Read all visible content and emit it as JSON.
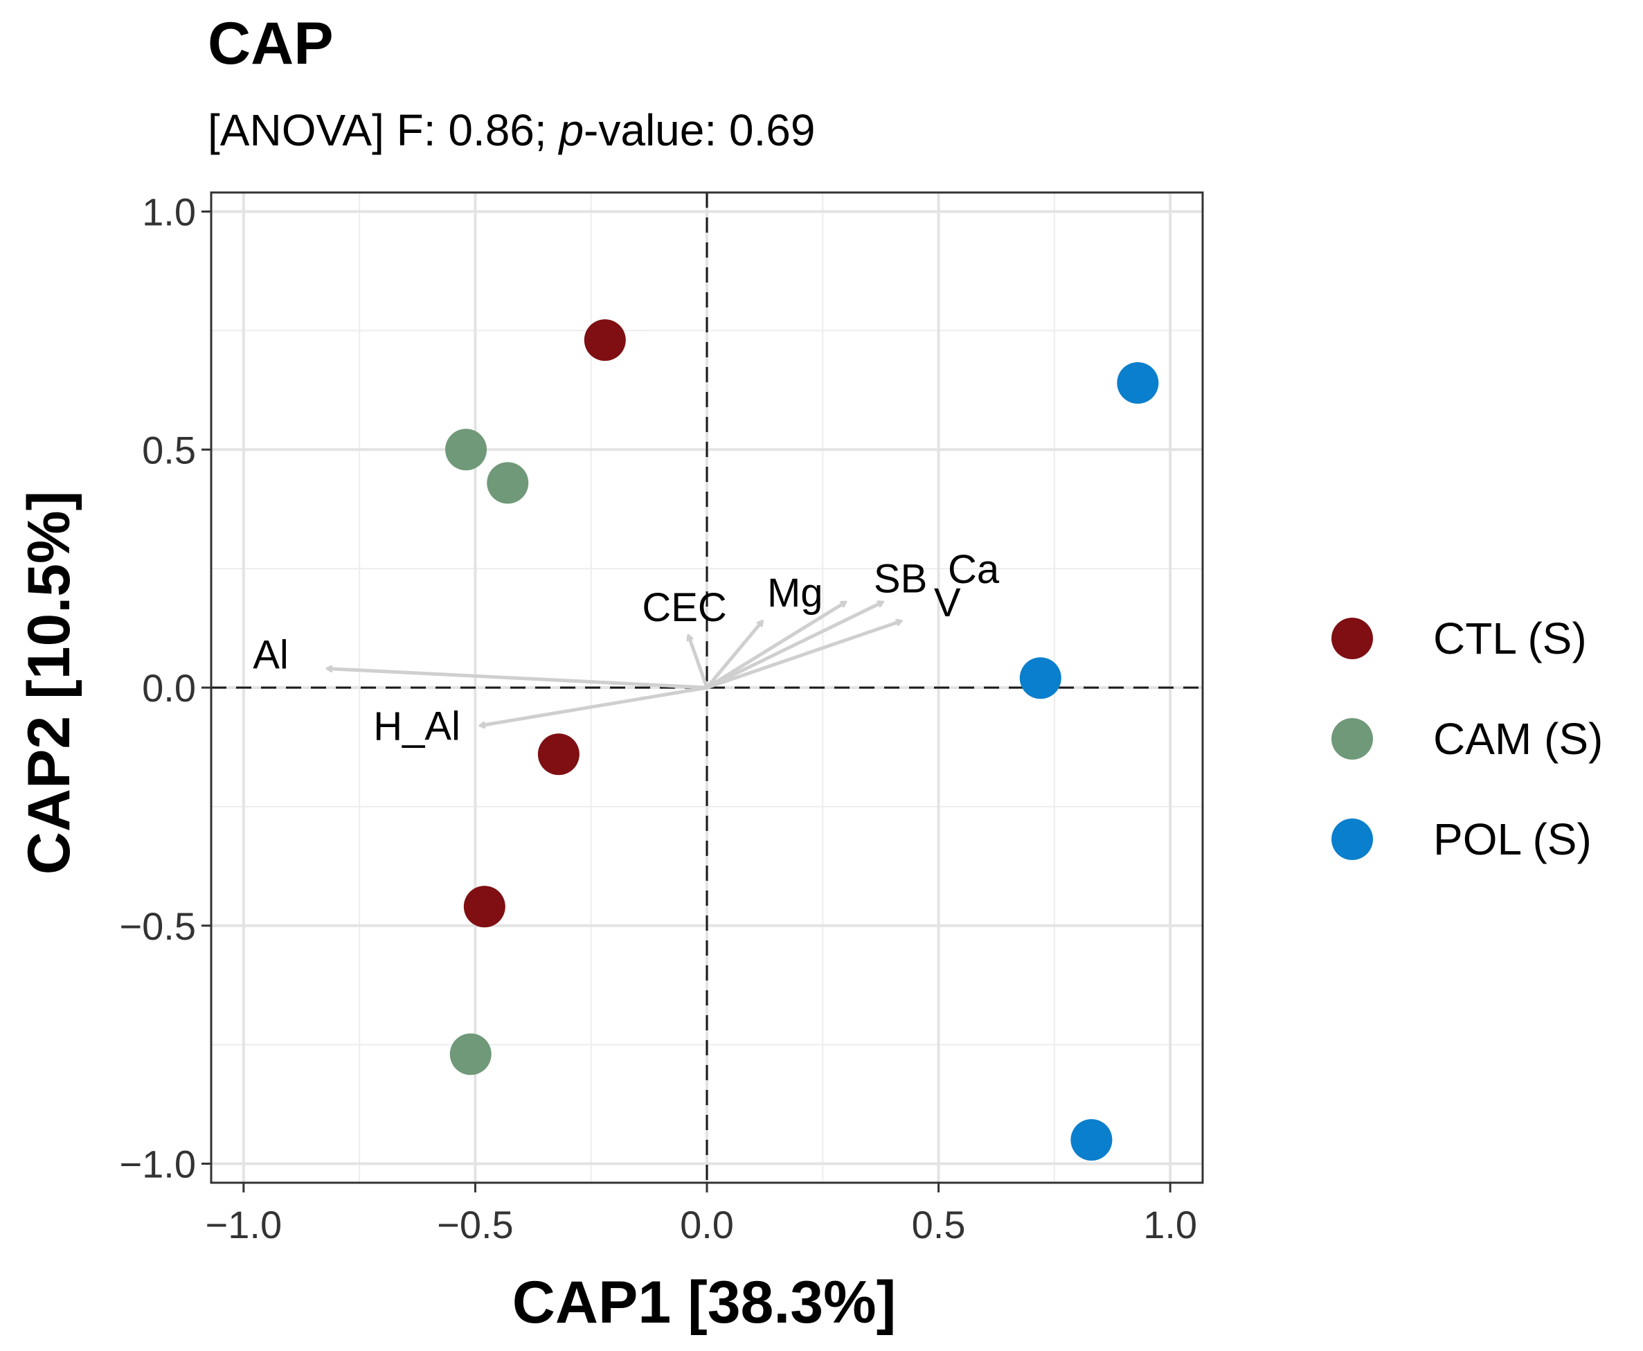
{
  "chart_data": {
    "type": "scatter",
    "title": "CAP",
    "subtitle": {
      "prefix": "[ANOVA] F: 0.86; ",
      "p_label": "p",
      "suffix": "-value: 0.69"
    },
    "xlabel": "CAP1   [38.3%]",
    "ylabel": "CAP2   [10.5%]",
    "xlim": [
      -1.07,
      1.07
    ],
    "ylim": [
      -1.04,
      1.04
    ],
    "x_ticks": [
      -1.0,
      -0.5,
      0.0,
      0.5,
      1.0
    ],
    "x_tick_labels": [
      "−1.0",
      "−0.5",
      "0.0",
      "0.5",
      "1.0"
    ],
    "y_ticks": [
      -1.0,
      -0.5,
      0.0,
      0.5,
      1.0
    ],
    "y_tick_labels": [
      "−1.0",
      "−0.5",
      "0.0",
      "0.5",
      "1.0"
    ],
    "grid": true,
    "legend_position": "right",
    "series": [
      {
        "name": "CTL (S)",
        "color": "#7f0f13",
        "points": [
          [
            -0.22,
            0.73
          ],
          [
            -0.32,
            -0.14
          ],
          [
            -0.48,
            -0.46
          ]
        ]
      },
      {
        "name": "CAM (S)",
        "color": "#6f9978",
        "points": [
          [
            -0.52,
            0.5
          ],
          [
            -0.43,
            0.43
          ],
          [
            -0.51,
            -0.77
          ]
        ]
      },
      {
        "name": "POL (S)",
        "color": "#0a7fcd",
        "points": [
          [
            0.93,
            0.64
          ],
          [
            0.72,
            0.02
          ],
          [
            0.83,
            -0.95
          ]
        ]
      }
    ],
    "env_vectors": [
      {
        "label": "Al",
        "x": -0.82,
        "y": 0.04,
        "lx": -0.98,
        "ly": 0.04
      },
      {
        "label": "H_Al",
        "x": -0.49,
        "y": -0.08,
        "lx": -0.72,
        "ly": -0.11
      },
      {
        "label": "CEC",
        "x": -0.04,
        "y": 0.11,
        "lx": -0.14,
        "ly": 0.14
      },
      {
        "label": "Mg",
        "x": 0.12,
        "y": 0.14,
        "lx": 0.13,
        "ly": 0.17
      },
      {
        "label": "SB",
        "x": 0.3,
        "y": 0.18,
        "lx": 0.36,
        "ly": 0.2
      },
      {
        "label": "Ca",
        "x": 0.38,
        "y": 0.18,
        "lx": 0.52,
        "ly": 0.22
      },
      {
        "label": "V",
        "x": 0.42,
        "y": 0.14,
        "lx": 0.49,
        "ly": 0.15
      }
    ],
    "vector_color": "#cfcfcf",
    "point_radius_px": 30
  }
}
